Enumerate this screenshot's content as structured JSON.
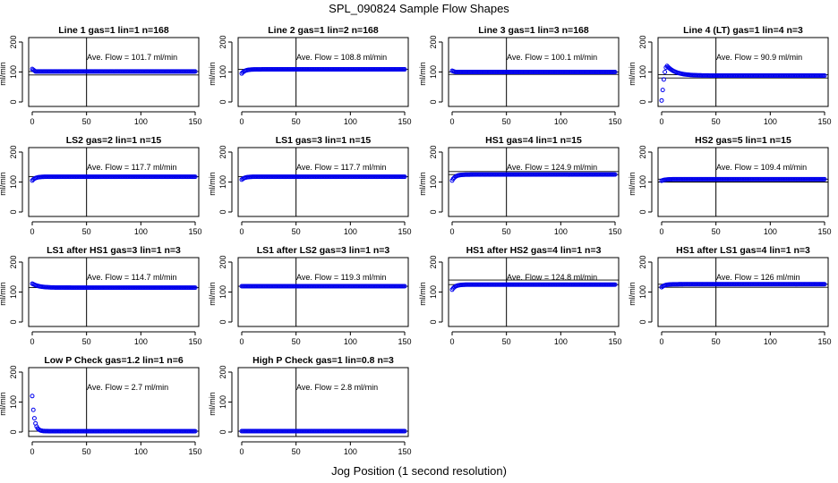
{
  "figure": {
    "title": "SPL_090824  Sample Flow Shapes",
    "xlabel": "Jog Position (1 second resolution)"
  },
  "chart_data": [
    {
      "type": "scatter",
      "title": "Line 1 gas=1 lin=1 n=168",
      "ylabel": "ml/min",
      "xlim": [
        0,
        150
      ],
      "ylim": [
        0,
        200
      ],
      "xticks": [
        0,
        50,
        100,
        150
      ],
      "yticks": [
        0,
        100,
        200
      ],
      "annotation": "Ave. Flow = 101.7  ml/min",
      "mean": 101.7,
      "vline_x": 50,
      "hlines": [
        101.7,
        90
      ],
      "shape": "flat",
      "start": 110,
      "level": 101.7
    },
    {
      "type": "scatter",
      "title": "Line 2 gas=1 lin=2 n=168",
      "ylabel": "ml/min",
      "xlim": [
        0,
        150
      ],
      "ylim": [
        0,
        200
      ],
      "xticks": [
        0,
        50,
        100,
        150
      ],
      "yticks": [
        0,
        100,
        200
      ],
      "annotation": "Ave. Flow = 108.8  ml/min",
      "mean": 108.8,
      "vline_x": 50,
      "hlines": [
        108.8
      ],
      "shape": "rise",
      "start": 95,
      "level": 108.8
    },
    {
      "type": "scatter",
      "title": "Line 3 gas=1 lin=3 n=168",
      "ylabel": "ml/min",
      "xlim": [
        0,
        150
      ],
      "ylim": [
        0,
        200
      ],
      "xticks": [
        0,
        50,
        100,
        150
      ],
      "yticks": [
        0,
        100,
        200
      ],
      "annotation": "Ave. Flow = 100.1  ml/min",
      "mean": 100.1,
      "vline_x": 50,
      "hlines": [
        100.1,
        92
      ],
      "shape": "flat",
      "start": 104,
      "level": 100.1
    },
    {
      "type": "scatter",
      "title": "Line 4 (LT) gas=1 lin=4 n=3",
      "ylabel": "ml/min",
      "xlim": [
        0,
        150
      ],
      "ylim": [
        0,
        200
      ],
      "xticks": [
        0,
        50,
        100,
        150
      ],
      "yticks": [
        0,
        100,
        200
      ],
      "annotation": "Ave. Flow = 90.9  ml/min",
      "mean": 90.9,
      "vline_x": 50,
      "hlines": [
        90.9,
        80
      ],
      "shape": "spike",
      "start": 5,
      "level": 88
    },
    {
      "type": "scatter",
      "title": "LS2 gas=2 lin=1 n=15",
      "ylabel": "ml/min",
      "xlim": [
        0,
        150
      ],
      "ylim": [
        0,
        200
      ],
      "xticks": [
        0,
        50,
        100,
        150
      ],
      "yticks": [
        0,
        100,
        200
      ],
      "annotation": "Ave. Flow = 117.7  ml/min",
      "mean": 117.7,
      "vline_x": 50,
      "hlines": [
        117.7
      ],
      "shape": "rise",
      "start": 105,
      "level": 117.7
    },
    {
      "type": "scatter",
      "title": "LS1 gas=3 lin=1 n=15",
      "ylabel": "ml/min",
      "xlim": [
        0,
        150
      ],
      "ylim": [
        0,
        200
      ],
      "xticks": [
        0,
        50,
        100,
        150
      ],
      "yticks": [
        0,
        100,
        200
      ],
      "annotation": "Ave. Flow = 117.7  ml/min",
      "mean": 117.7,
      "vline_x": 50,
      "hlines": [
        117.7
      ],
      "shape": "rise",
      "start": 108,
      "level": 117.7
    },
    {
      "type": "scatter",
      "title": "HS1 gas=4 lin=1 n=15",
      "ylabel": "ml/min",
      "xlim": [
        0,
        150
      ],
      "ylim": [
        0,
        200
      ],
      "xticks": [
        0,
        50,
        100,
        150
      ],
      "yticks": [
        0,
        100,
        200
      ],
      "annotation": "Ave. Flow = 124.9  ml/min",
      "mean": 124.9,
      "vline_x": 50,
      "hlines": [
        124.9,
        135
      ],
      "shape": "rise",
      "start": 105,
      "level": 124.9
    },
    {
      "type": "scatter",
      "title": "HS2 gas=5 lin=1 n=15",
      "ylabel": "ml/min",
      "xlim": [
        0,
        150
      ],
      "ylim": [
        0,
        200
      ],
      "xticks": [
        0,
        50,
        100,
        150
      ],
      "yticks": [
        0,
        100,
        200
      ],
      "annotation": "Ave. Flow = 109.4  ml/min",
      "mean": 109.4,
      "vline_x": 50,
      "hlines": [
        109.4,
        100
      ],
      "shape": "rise",
      "start": 104,
      "level": 109.4
    },
    {
      "type": "scatter",
      "title": "LS1 after HS1 gas=3 lin=1 n=3",
      "ylabel": "ml/min",
      "xlim": [
        0,
        150
      ],
      "ylim": [
        0,
        200
      ],
      "xticks": [
        0,
        50,
        100,
        150
      ],
      "yticks": [
        0,
        100,
        200
      ],
      "annotation": "Ave. Flow = 114.7  ml/min",
      "mean": 114.7,
      "vline_x": 50,
      "hlines": [
        114.7
      ],
      "shape": "decay",
      "start": 128,
      "level": 114.7
    },
    {
      "type": "scatter",
      "title": "LS1 after LS2 gas=3 lin=1 n=3",
      "ylabel": "ml/min",
      "xlim": [
        0,
        150
      ],
      "ylim": [
        0,
        200
      ],
      "xticks": [
        0,
        50,
        100,
        150
      ],
      "yticks": [
        0,
        100,
        200
      ],
      "annotation": "Ave. Flow = 119.3  ml/min",
      "mean": 119.3,
      "vline_x": 50,
      "hlines": [
        119.3
      ],
      "shape": "flat",
      "start": 119.3,
      "level": 119.3
    },
    {
      "type": "scatter",
      "title": "HS1 after HS2 gas=4 lin=1 n=3",
      "ylabel": "ml/min",
      "xlim": [
        0,
        150
      ],
      "ylim": [
        0,
        200
      ],
      "xticks": [
        0,
        50,
        100,
        150
      ],
      "yticks": [
        0,
        100,
        200
      ],
      "annotation": "Ave. Flow = 124.8  ml/min",
      "mean": 124.8,
      "vline_x": 50,
      "hlines": [
        124.8,
        140
      ],
      "shape": "rise",
      "start": 108,
      "level": 124.8
    },
    {
      "type": "scatter",
      "title": "HS1 after LS1 gas=4 lin=1 n=3",
      "ylabel": "ml/min",
      "xlim": [
        0,
        150
      ],
      "ylim": [
        0,
        200
      ],
      "xticks": [
        0,
        50,
        100,
        150
      ],
      "yticks": [
        0,
        100,
        200
      ],
      "annotation": "Ave. Flow = 126  ml/min",
      "mean": 126,
      "vline_x": 50,
      "hlines": [
        126,
        116
      ],
      "shape": "rise",
      "start": 116,
      "level": 126
    },
    {
      "type": "scatter",
      "title": "Low P Check gas=1.2 lin=1 n=6",
      "ylabel": "ml/min",
      "xlim": [
        0,
        150
      ],
      "ylim": [
        0,
        200
      ],
      "xticks": [
        0,
        50,
        100,
        150
      ],
      "yticks": [
        0,
        100,
        200
      ],
      "annotation": "Ave. Flow = 2.7  ml/min",
      "mean": 2.7,
      "vline_x": 50,
      "hlines": [
        2.7
      ],
      "shape": "fall",
      "start": 120,
      "level": 2.7
    },
    {
      "type": "scatter",
      "title": "High P Check gas=1 lin=0.8 n=3",
      "ylabel": "ml/min",
      "xlim": [
        0,
        150
      ],
      "ylim": [
        0,
        200
      ],
      "xticks": [
        0,
        50,
        100,
        150
      ],
      "yticks": [
        0,
        100,
        200
      ],
      "annotation": "Ave. Flow = 2.8  ml/min",
      "mean": 2.8,
      "vline_x": 50,
      "hlines": [
        2.8
      ],
      "shape": "flat",
      "start": 2.8,
      "level": 2.8
    }
  ]
}
